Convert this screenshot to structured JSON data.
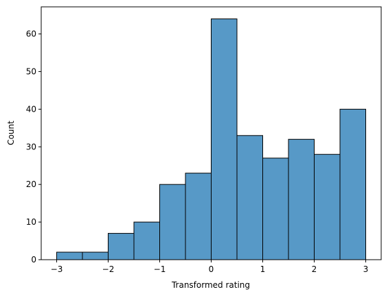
{
  "chart_data": {
    "type": "bar",
    "subtype": "histogram",
    "title": "",
    "xlabel": "Transformed rating",
    "ylabel": "Count",
    "bins": [
      {
        "x0": -3.0,
        "x1": -2.5,
        "count": 2
      },
      {
        "x0": -2.5,
        "x1": -2.0,
        "count": 2
      },
      {
        "x0": -2.0,
        "x1": -1.5,
        "count": 7
      },
      {
        "x0": -1.5,
        "x1": -1.0,
        "count": 10
      },
      {
        "x0": -1.0,
        "x1": -0.5,
        "count": 20
      },
      {
        "x0": -0.5,
        "x1": 0.0,
        "count": 23
      },
      {
        "x0": 0.0,
        "x1": 0.5,
        "count": 64
      },
      {
        "x0": 0.5,
        "x1": 1.0,
        "count": 33
      },
      {
        "x0": 1.0,
        "x1": 1.5,
        "count": 27
      },
      {
        "x0": 1.5,
        "x1": 2.0,
        "count": 32
      },
      {
        "x0": 2.0,
        "x1": 2.5,
        "count": 28
      },
      {
        "x0": 2.5,
        "x1": 3.0,
        "count": 40
      }
    ],
    "xlim": [
      -3.3,
      3.3
    ],
    "ylim": [
      0,
      67.2
    ],
    "xticks": [
      -3,
      -2,
      -1,
      0,
      1,
      2,
      3
    ],
    "xtick_labels": [
      "−3",
      "−2",
      "−1",
      "0",
      "1",
      "2",
      "3"
    ],
    "yticks": [
      0,
      10,
      20,
      30,
      40,
      50,
      60
    ],
    "ytick_labels": [
      "0",
      "10",
      "20",
      "30",
      "40",
      "50",
      "60"
    ],
    "grid": false,
    "bar_color": "#5799c7",
    "edge_color": "#000000"
  }
}
